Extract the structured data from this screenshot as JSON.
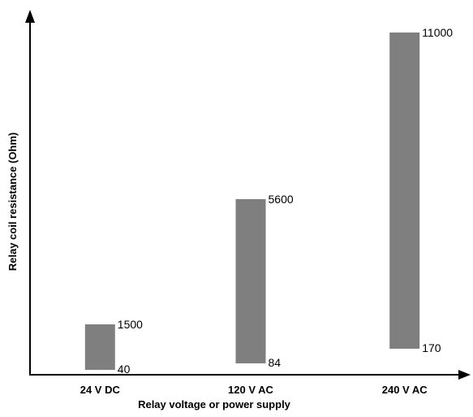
{
  "chart_data": {
    "type": "bar",
    "subtype": "range",
    "title": "",
    "xlabel": "Relay voltage or power supply",
    "ylabel": "Relay coil resistance (Ohm)",
    "categories": [
      "24 V DC",
      "120 V AC",
      "240 V AC"
    ],
    "ranges": [
      {
        "category": "24 V DC",
        "low": 40,
        "high": 1500,
        "low_label": "40",
        "high_label": "1500"
      },
      {
        "category": "120 V AC",
        "low": 84,
        "high": 5600,
        "low_label": "84",
        "high_label": "5600"
      },
      {
        "category": "240 V AC",
        "low": 170,
        "high": 11000,
        "low_label": "170",
        "high_label": "11000"
      }
    ],
    "yscale": "nonlinear",
    "grid": false,
    "legend": "none",
    "colors": {
      "bar": "#7f7f7f",
      "axis": "#000000"
    }
  }
}
